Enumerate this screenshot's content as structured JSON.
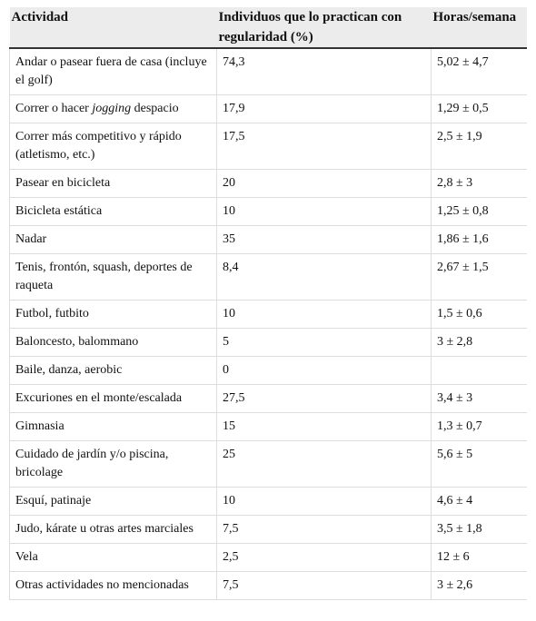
{
  "table": {
    "header": [
      "Actividad",
      "Individuos que lo practican con regularidad (%)",
      "Horas/semana"
    ],
    "rows": [
      [
        "Andar o pasear fuera de casa (incluye el golf)",
        "74,3",
        "5,02 ± 4,7"
      ],
      [
        {
          "parts": [
            "Correr o hacer ",
            "jogging",
            " despacio"
          ],
          "italic": 1
        },
        "17,9",
        "1,29 ± 0,5"
      ],
      [
        "Correr más competitivo y rápido (atletismo, etc.)",
        "17,5",
        "2,5 ± 1,9"
      ],
      [
        "Pasear en bicicleta",
        "20",
        "2,8 ± 3"
      ],
      [
        "Bicicleta estática",
        "10",
        "1,25 ± 0,8"
      ],
      [
        "Nadar",
        "35",
        "1,86 ± 1,6"
      ],
      [
        "Tenis, frontón, squash, deportes de raqueta",
        "8,4",
        "2,67 ± 1,5"
      ],
      [
        "Futbol, futbito",
        "10",
        "1,5 ± 0,6"
      ],
      [
        "Baloncesto, balommano",
        "5",
        "3 ± 2,8"
      ],
      [
        "Baile, danza, aerobic",
        "0",
        null
      ],
      [
        "Excuriones en el monte/escalada",
        "27,5",
        "3,4 ± 3"
      ],
      [
        "Gimnasia",
        "15",
        "1,3 ± 0,7"
      ],
      [
        "Cuidado de jardín y/o piscina, bricolage",
        "25",
        "5,6 ± 5"
      ],
      [
        "Esquí, patinaje",
        "10",
        "4,6 ± 4"
      ],
      [
        "Judo, kárate u otras artes marciales",
        "7,5",
        "3,5 ± 1,8"
      ],
      [
        "Vela",
        "2,5",
        "12 ± 6"
      ],
      [
        "Otras actividades no mencionadas",
        "7,5",
        "3 ± 2,6"
      ]
    ]
  }
}
